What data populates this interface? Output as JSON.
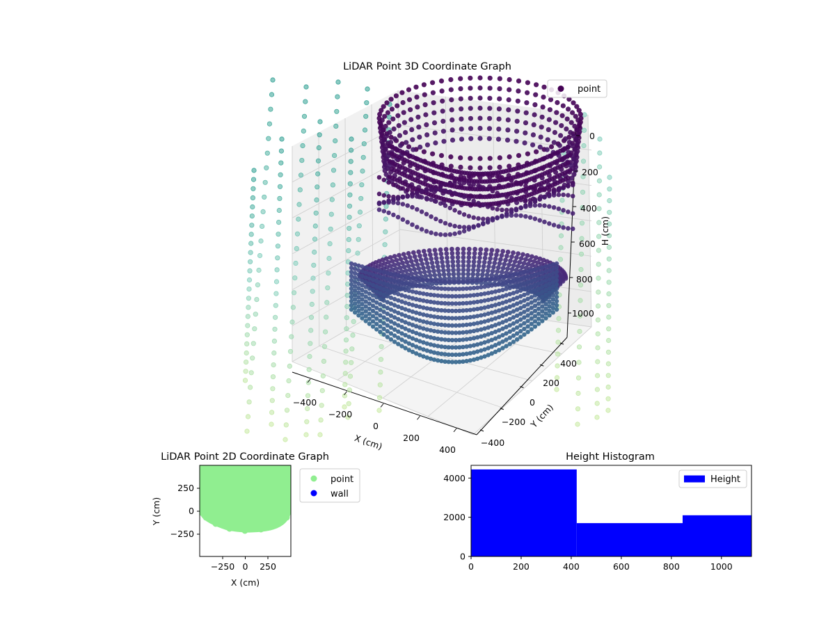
{
  "chart_data": [
    {
      "type": "scatter3d",
      "title": "LiDAR Point 3D Coordinate Graph",
      "xlabel": "X (cm)",
      "ylabel": "Y (cm)",
      "zlabel": "H (cm)",
      "x_ticks": [
        "−400",
        "−200",
        "0",
        "200",
        "400"
      ],
      "y_ticks": [
        "−400",
        "−200",
        "0",
        "200",
        "400"
      ],
      "z_ticks": [
        "0",
        "200",
        "400",
        "600",
        "800",
        "1000"
      ],
      "xlim": [
        -450,
        450
      ],
      "ylim": [
        -450,
        450
      ],
      "zlim": [
        0,
        1100
      ],
      "z_inverted": true,
      "grid": true,
      "legend": {
        "position": "top-right",
        "entries": [
          "point"
        ]
      },
      "series": [
        {
          "name": "point",
          "colormap": "viridis",
          "color": "#440154",
          "shape": "bowl of stacked rings (ceiling ring near H≈0–150, shell to H≈1100)"
        }
      ],
      "wall_colormap": [
        "#2a9d8f",
        "#7fcdbb",
        "#c7e9a0"
      ]
    },
    {
      "type": "scatter",
      "title": "LiDAR Point 2D Coordinate Graph",
      "xlabel": "X (cm)",
      "ylabel": "Y (cm)",
      "x_ticks": [
        "−250",
        "0",
        "250"
      ],
      "y_ticks": [
        "250",
        "0",
        "−250"
      ],
      "xlim": [
        -500,
        500
      ],
      "ylim": [
        -500,
        500
      ],
      "legend": {
        "position": "right-outside",
        "entries": [
          "point",
          "wall"
        ]
      },
      "series": [
        {
          "name": "point",
          "color": "#90ee90",
          "region": "x∈[-480,480], y∈[-210,500]"
        },
        {
          "name": "wall",
          "color": "#0000ff"
        }
      ]
    },
    {
      "type": "bar",
      "title": "Height Histogram",
      "x_ticks": [
        "0",
        "200",
        "400",
        "600",
        "800",
        "1000"
      ],
      "y_ticks": [
        "0",
        "2000",
        "4000"
      ],
      "xlim": [
        0,
        1120
      ],
      "ylim": [
        0,
        4650
      ],
      "legend": {
        "position": "top-right",
        "entries": [
          "Height"
        ]
      },
      "series": [
        {
          "name": "Height",
          "color": "#0000ff",
          "bins": [
            {
              "from": 0,
              "to": 422,
              "count": 4440
            },
            {
              "from": 422,
              "to": 845,
              "count": 1700
            },
            {
              "from": 845,
              "to": 1120,
              "count": 2100
            }
          ]
        }
      ]
    }
  ]
}
